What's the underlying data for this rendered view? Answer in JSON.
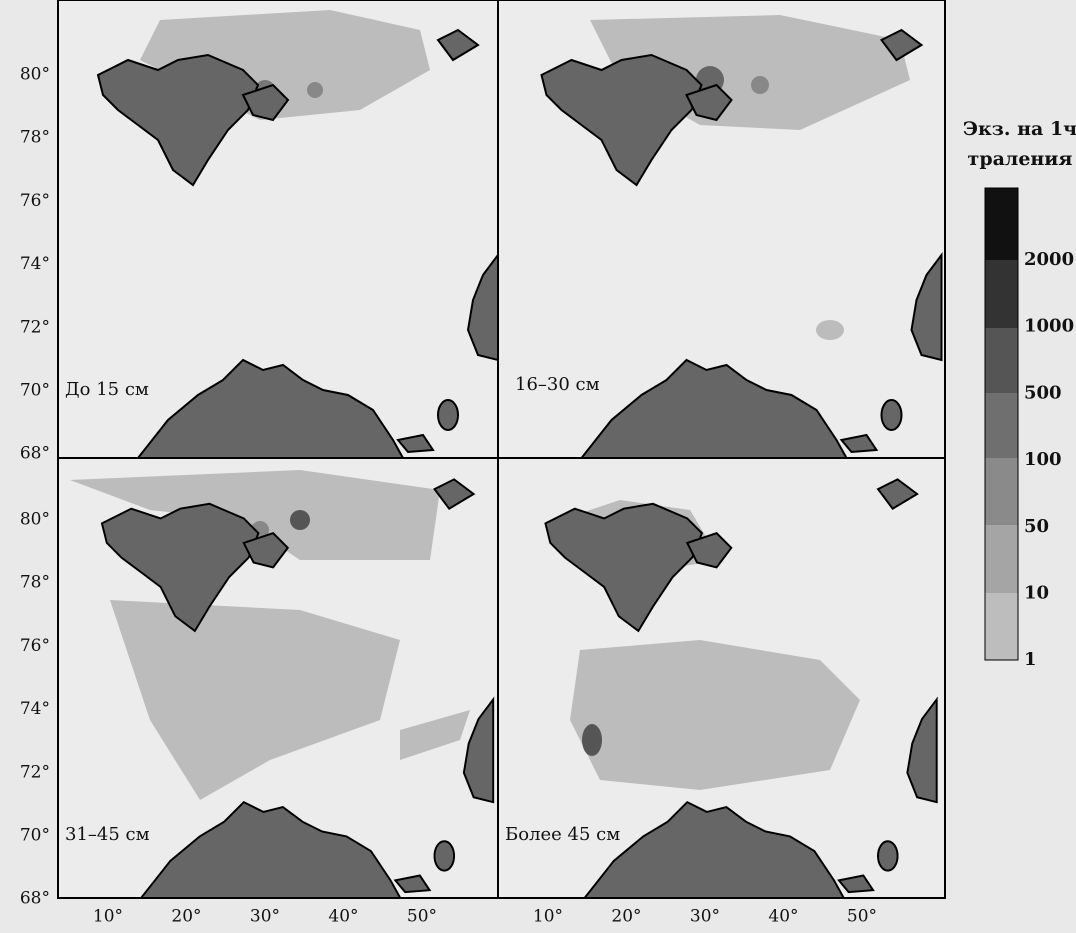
{
  "panels": [
    {
      "label": "До 15 см"
    },
    {
      "label": "16–30 см"
    },
    {
      "label": "31–45 см"
    },
    {
      "label": "Более 45 см"
    }
  ],
  "latitude_labels": [
    "80°",
    "78°",
    "76°",
    "74°",
    "72°",
    "70°",
    "68°"
  ],
  "longitude_labels": [
    "10°",
    "20°",
    "30°",
    "40°",
    "50°"
  ],
  "legend": {
    "title": [
      "Экз. на 1ч",
      "траления"
    ],
    "levels": [
      "2000",
      "1000",
      "500",
      "100",
      "50",
      "10",
      "1"
    ]
  }
}
